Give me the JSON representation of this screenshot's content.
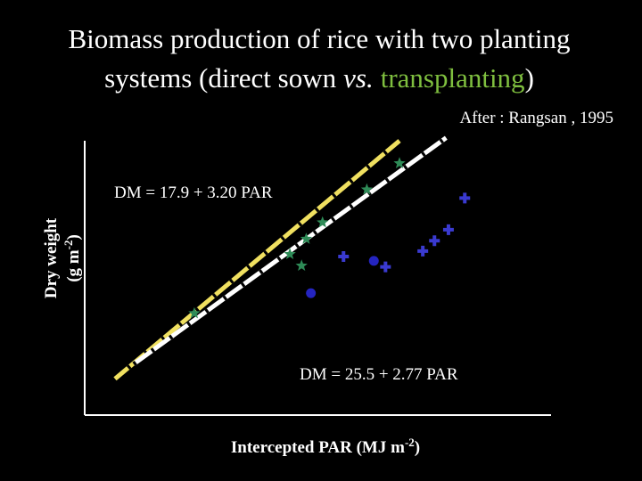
{
  "chart_data": {
    "type": "scatter",
    "title_line1": "Biomass production of rice with two planting",
    "title_line2": [
      "systems (direct sown",
      "vs.",
      "transplanting",
      ")"
    ],
    "title_highlight_color": "#7fbf3f",
    "source": "After : Rangsan , 1995",
    "x_label": [
      "Intercepted PAR (MJ m",
      "-2",
      ")"
    ],
    "y_label": [
      "Dry weight",
      "(g m",
      "-2",
      ")"
    ],
    "xlim": [
      0,
      200
    ],
    "ylim": [
      0,
      450
    ],
    "series": [
      {
        "marker": "star",
        "color": "#2e8b57",
        "x": [
          135,
          121,
          102,
          95,
          88,
          93,
          47
        ],
        "values": [
          413,
          370,
          316,
          289,
          264,
          245,
          167
        ]
      },
      {
        "marker": "cross",
        "color": "#3a3ad0",
        "x": [
          163,
          156,
          150,
          145,
          129,
          111
        ],
        "values": [
          356,
          304,
          286,
          269,
          243,
          260
        ]
      },
      {
        "marker": "circle",
        "color": "#2424c0",
        "x": [
          124,
          97
        ],
        "values": [
          253,
          200
        ]
      }
    ],
    "fits": [
      {
        "label": "DM = 17.9 + 3.20 PAR",
        "intercept": 17.9,
        "slope": 3.2,
        "color": "#f0e060",
        "xrange": [
          13,
          135
        ]
      },
      {
        "label": "DM = 25.5 + 2.77 PAR",
        "intercept": 25.5,
        "slope": 2.77,
        "color": "#ffffff",
        "xrange": [
          21,
          155
        ]
      }
    ]
  }
}
